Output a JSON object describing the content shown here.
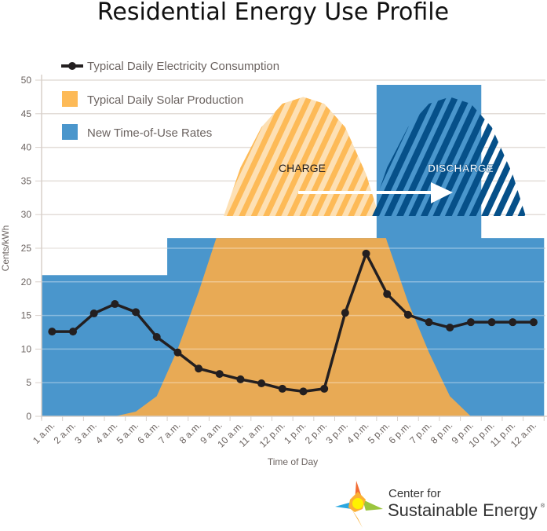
{
  "chart_data": {
    "type": "line",
    "title": "Residential Energy Use Profile",
    "xlabel": "Time of Day",
    "ylabel": "Cents/kWh",
    "ylim": [
      0,
      50
    ],
    "yticks": [
      0,
      5,
      10,
      15,
      20,
      25,
      30,
      35,
      40,
      45,
      50
    ],
    "grid": true,
    "legend_position": "top-left",
    "categories": [
      "1 a.m.",
      "2 a.m.",
      "3 a.m.",
      "4 a.m.",
      "5 a.m.",
      "6 a.m.",
      "7 a.m.",
      "8 a.m.",
      "9 a.m.",
      "10 a.m.",
      "11 a.m.",
      "12 p.m.",
      "1 p.m.",
      "2 p.m.",
      "3 p.m.",
      "4 p.m.",
      "5 p.m.",
      "6 p.m.",
      "7 p.m.",
      "8 p.m.",
      "9 p.m.",
      "10 p.m.",
      "11 p.m.",
      "12 a.m."
    ],
    "series": [
      {
        "name": "Typical Daily Electricity Consumption",
        "type": "line",
        "color": "#231f20",
        "values": [
          12.6,
          12.6,
          15.3,
          16.7,
          15.5,
          11.8,
          9.5,
          7.1,
          6.3,
          5.5,
          4.9,
          4.1,
          3.7,
          4.1,
          15.4,
          24.2,
          18.2,
          15.1,
          14.0,
          13.2,
          14.0,
          14.0,
          14.0,
          14.0
        ]
      },
      {
        "name": "Typical Daily Solar Production",
        "type": "area",
        "color": "#fdba57",
        "values": [
          0,
          0,
          0,
          0,
          0.7,
          3,
          10,
          18.5,
          28,
          37,
          43,
          46.5,
          47.5,
          46.5,
          43,
          36,
          26,
          17,
          9.5,
          3,
          0,
          0,
          0,
          0
        ]
      },
      {
        "name": "New Time-of-Use Rates",
        "type": "step",
        "color": "#4a96cc",
        "values": [
          21,
          21,
          21,
          21,
          21,
          21,
          26.5,
          26.5,
          26.5,
          26.5,
          26.5,
          26.5,
          26.5,
          26.5,
          26.5,
          26.5,
          49.3,
          49.3,
          49.3,
          49.3,
          49.3,
          26.5,
          26.5,
          26.5
        ]
      }
    ],
    "annotations": {
      "charge": "CHARGE",
      "discharge": "DISCHARGE"
    }
  },
  "logo": {
    "line1": "Center for",
    "line2": "Sustainable Energy",
    "mark": "®"
  }
}
